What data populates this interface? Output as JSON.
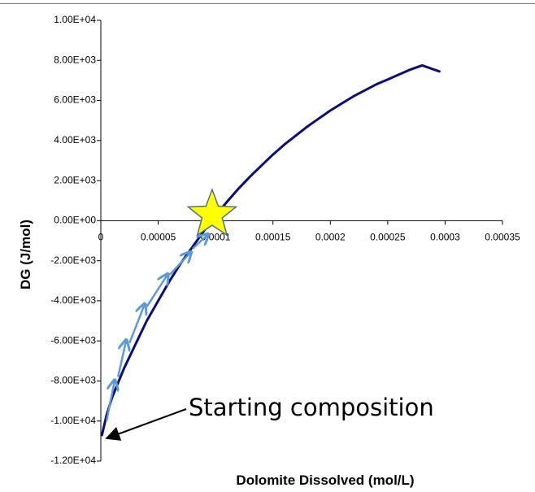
{
  "chart_data": {
    "type": "line",
    "title": "",
    "xlabel": "Dolomite Dissolved (mol/L)",
    "ylabel": "DG (J/mol)",
    "xlim": [
      0,
      0.00035
    ],
    "ylim": [
      -12000,
      10000
    ],
    "x_ticks": [
      0,
      5e-05,
      0.0001,
      0.00015,
      0.0002,
      0.00025,
      0.0003,
      0.00035
    ],
    "x_tick_labels": [
      "0",
      "0.00005",
      "0.0001",
      "0.00015",
      "0.0002",
      "0.00025",
      "0.0003",
      "0.00035"
    ],
    "y_ticks": [
      10000,
      8000,
      6000,
      4000,
      2000,
      0,
      -2000,
      -4000,
      -6000,
      -8000,
      -10000,
      -12000
    ],
    "y_tick_labels": [
      "1.00E+04",
      "8.00E+03",
      "6.00E+03",
      "4.00E+03",
      "2.00E+03",
      "0.00E+00",
      "-2.00E+03",
      "-4.00E+03",
      "-6.00E+03",
      "-8.00E+03",
      "-1.00E+04",
      "-1.20E+04"
    ],
    "grid": false,
    "legend": "none",
    "series": [
      {
        "color": "#0b0b7a",
        "x": [
          1e-06,
          5e-06,
          1e-05,
          2e-05,
          3e-05,
          4e-05,
          5e-05,
          6e-05,
          7e-05,
          8e-05,
          9e-05,
          0.0001,
          0.00011,
          0.00012,
          0.00013,
          0.00014,
          0.00015,
          0.00016,
          0.00017,
          0.00018,
          0.00019,
          0.0002,
          0.00021,
          0.00022,
          0.00023,
          0.00024,
          0.00025,
          0.00026,
          0.00027,
          0.00028,
          0.000295
        ],
        "y": [
          -10700,
          -9700,
          -8800,
          -7400,
          -6200,
          -5000,
          -4000,
          -3000,
          -2100,
          -1300,
          -500,
          250,
          950,
          1600,
          2200,
          2750,
          3300,
          3800,
          4250,
          4700,
          5100,
          5500,
          5850,
          6200,
          6500,
          6800,
          7050,
          7300,
          7550,
          7750,
          7450
        ]
      }
    ],
    "annotations": {
      "starting_label": "Starting composition",
      "star_point": {
        "x": 9.7e-05,
        "y": 300,
        "color": "#ffff00"
      },
      "arrow_color": "#5b9bd5",
      "step_arrows": [
        {
          "x1": 5e-06,
          "y1": -10000,
          "x2": 1.2e-05,
          "y2": -8000
        },
        {
          "x1": 1.5e-05,
          "y1": -7800,
          "x2": 2.2e-05,
          "y2": -6000
        },
        {
          "x1": 2.5e-05,
          "y1": -6100,
          "x2": 3.8e-05,
          "y2": -4200
        },
        {
          "x1": 4e-05,
          "y1": -4300,
          "x2": 5.8e-05,
          "y2": -2700
        },
        {
          "x1": 6e-05,
          "y1": -2700,
          "x2": 7.8e-05,
          "y2": -1600
        },
        {
          "x1": 8e-05,
          "y1": -1400,
          "x2": 9.3e-05,
          "y2": -700
        }
      ]
    }
  }
}
